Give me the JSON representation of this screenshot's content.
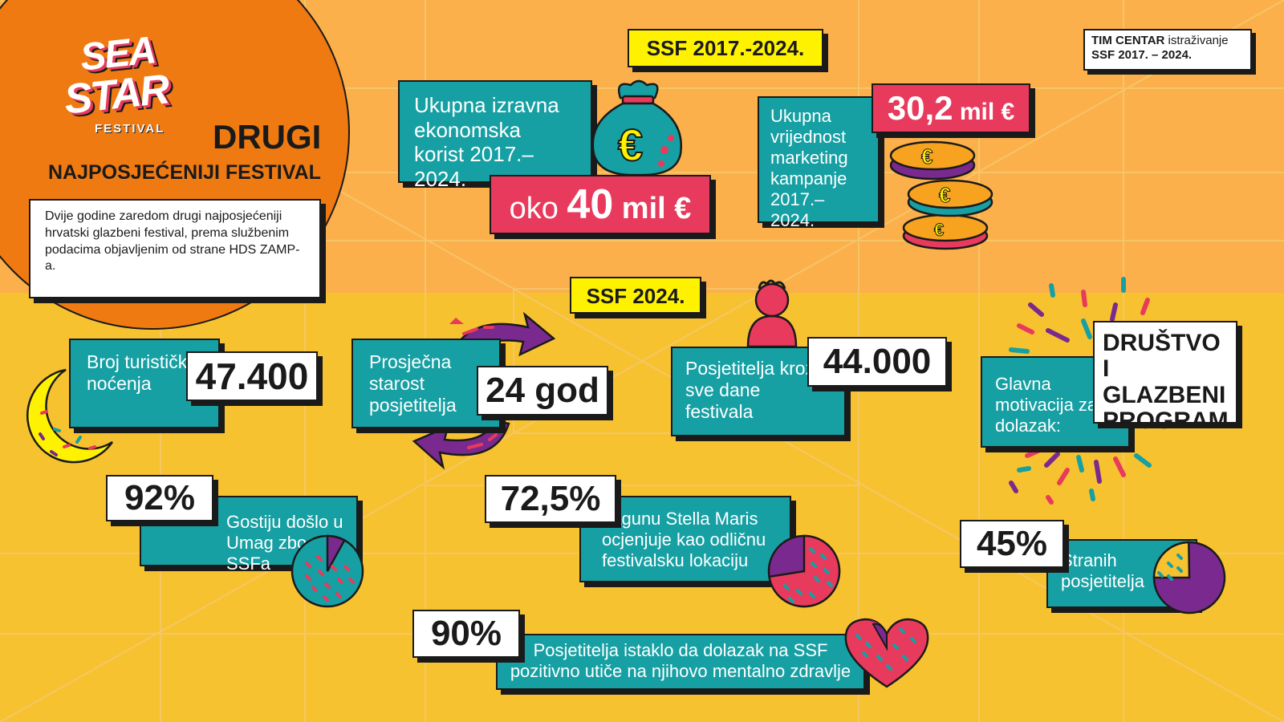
{
  "colors": {
    "background_top": "#fbb04c",
    "background_bottom": "#f7c230",
    "circle": "#ef7a12",
    "teal": "#16a0a3",
    "pink": "#e83a5c",
    "purple": "#7a2a8e",
    "yellow_tag": "#fff200",
    "grid_lines": "#f4d060"
  },
  "logo": {
    "line1": "SEA",
    "line2": "STAR",
    "line3": "FESTIVAL"
  },
  "hero": {
    "title": "DRUGI",
    "subtitle": "NAJPOSJEĆENIJI FESTIVAL",
    "description": "Dvije godine zaredom drugi najposjećeniji hrvatski glazbeni festival, prema službenim podacima objavljenim od strane HDS ZAMP-a."
  },
  "source": {
    "org": "TIM CENTAR",
    "rest": " istraživanje",
    "line2": "SSF 2017. – 2024."
  },
  "period_tag": "SSF 2017.-2024.",
  "year_tag": "SSF 2024.",
  "economic": {
    "label": "Ukupna izravna ekonomska korist 2017.–2024.",
    "prefix": "oko ",
    "value": "40",
    "unit": " mil €",
    "icon": "money-bag-icon"
  },
  "marketing": {
    "label": "Ukupna vrijednost marketing kampanje 2017.–2024.",
    "value": "30,2",
    "unit": " mil €",
    "icon": "coins-icon"
  },
  "overnights": {
    "label": "Broj turističkih noćenja",
    "value": "47.400",
    "icon": "moon-icon"
  },
  "age": {
    "label": "Prosječna starost posjetitelja",
    "value": "24 god",
    "icon": "circular-arrows-icon"
  },
  "visitors": {
    "label": "Posjetitelja kroz sve dane festivala",
    "value": "44.000",
    "icon": "person-icon"
  },
  "motivation": {
    "label": "Glavna motivacija za dolazak:",
    "value": "DRUŠTVO I GLAZBENI PROGRAM",
    "icon": "burst-icon"
  },
  "came_for_ssf": {
    "value": "92%",
    "label": "Gostiju došlo u Umag zbog SSFa",
    "fraction": 0.92
  },
  "lagoon": {
    "value": "72,5%",
    "label": "Lagunu Stella Maris ocjenjuje kao odličnu festivalsku lokaciju",
    "fraction": 0.725
  },
  "foreign": {
    "value": "45%",
    "label": "Stranih posjetitelja",
    "fraction": 0.45
  },
  "mental": {
    "value": "90%",
    "label": "Posjetitelja istaklo da dolazak na SSF pozitivno utiče na njihovo mentalno zdravlje",
    "fraction": 0.9,
    "icon": "heart-icon"
  }
}
